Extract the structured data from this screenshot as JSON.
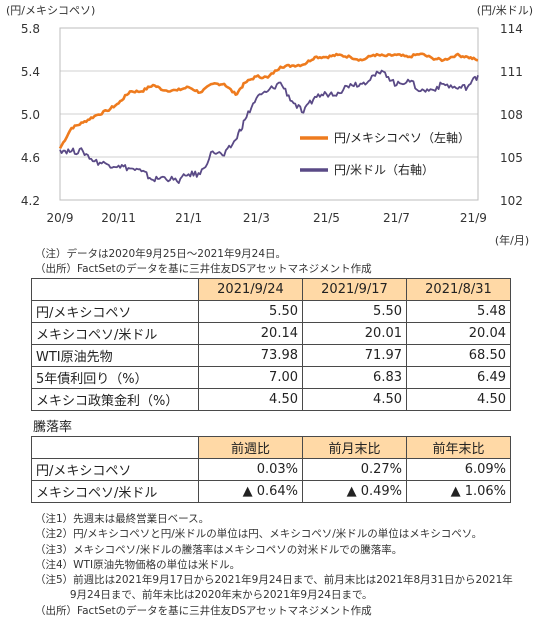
{
  "chart_data": {
    "type": "line",
    "left_axis_unit": "(円/メキシコペソ)",
    "right_axis_unit": "(円/米ドル)",
    "x_axis_unit": "(年/月)",
    "x_ticks": [
      "20/9",
      "20/11",
      "21/1",
      "21/3",
      "21/5",
      "21/7",
      "21/9"
    ],
    "left_ylim": [
      4.2,
      5.8
    ],
    "left_ticks": [
      "4.2",
      "4.6",
      "5.0",
      "5.4",
      "5.8"
    ],
    "right_ylim": [
      102,
      114
    ],
    "right_ticks": [
      "102",
      "105",
      "108",
      "111",
      "114"
    ],
    "series": [
      {
        "name": "円/メキシコペソ（左軸）",
        "axis": "left",
        "color": "#ee7b1e",
        "x": [
          "2020-09-25",
          "2020-10-05",
          "2020-10-15",
          "2020-10-25",
          "2020-11-05",
          "2020-11-15",
          "2020-11-25",
          "2020-12-05",
          "2020-12-15",
          "2020-12-25",
          "2021-01-05",
          "2021-01-15",
          "2021-01-25",
          "2021-02-05",
          "2021-02-15",
          "2021-02-25",
          "2021-03-05",
          "2021-03-15",
          "2021-03-25",
          "2021-04-05",
          "2021-04-15",
          "2021-04-25",
          "2021-05-05",
          "2021-05-15",
          "2021-05-25",
          "2021-06-05",
          "2021-06-15",
          "2021-06-25",
          "2021-07-05",
          "2021-07-15",
          "2021-07-25",
          "2021-08-05",
          "2021-08-15",
          "2021-08-25",
          "2021-09-05",
          "2021-09-15",
          "2021-09-24"
        ],
        "y": [
          4.68,
          4.87,
          4.92,
          4.98,
          5.03,
          5.1,
          5.21,
          5.21,
          5.27,
          5.22,
          5.22,
          5.25,
          5.2,
          5.28,
          5.28,
          5.18,
          5.29,
          5.35,
          5.34,
          5.44,
          5.45,
          5.46,
          5.53,
          5.53,
          5.55,
          5.53,
          5.5,
          5.55,
          5.54,
          5.55,
          5.53,
          5.56,
          5.52,
          5.5,
          5.55,
          5.53,
          5.5
        ]
      },
      {
        "name": "円/米ドル（右軸）",
        "axis": "right",
        "color": "#5a4a86",
        "x": [
          "2020-09-25",
          "2020-10-05",
          "2020-10-15",
          "2020-10-25",
          "2020-11-05",
          "2020-11-15",
          "2020-11-25",
          "2020-12-05",
          "2020-12-15",
          "2020-12-25",
          "2021-01-05",
          "2021-01-15",
          "2021-01-25",
          "2021-02-05",
          "2021-02-15",
          "2021-02-25",
          "2021-03-05",
          "2021-03-15",
          "2021-03-25",
          "2021-04-05",
          "2021-04-15",
          "2021-04-25",
          "2021-05-05",
          "2021-05-15",
          "2021-05-25",
          "2021-06-05",
          "2021-06-15",
          "2021-06-25",
          "2021-07-05",
          "2021-07-15",
          "2021-07-25",
          "2021-08-05",
          "2021-08-15",
          "2021-08-25",
          "2021-09-05",
          "2021-09-15",
          "2021-09-24"
        ],
        "y": [
          105.5,
          105.4,
          105.4,
          104.7,
          104.5,
          104.4,
          104.2,
          104.0,
          103.4,
          103.6,
          103.3,
          103.8,
          103.8,
          105.4,
          105.1,
          106.2,
          107.6,
          109.1,
          109.6,
          110.2,
          108.9,
          108.1,
          109.2,
          109.4,
          109.5,
          110.1,
          110.1,
          110.7,
          110.9,
          110.0,
          110.4,
          109.6,
          109.7,
          110.1,
          109.8,
          109.9,
          110.7
        ]
      }
    ]
  },
  "notes_top": [
    "（注）データは2020年9月25日～2021年9月24日。",
    "（出所）FactSetのデータを基に三井住友DSアセットマネジメント作成"
  ],
  "table1": {
    "headers": [
      "2021/9/24",
      "2021/9/17",
      "2021/8/31"
    ],
    "rows": [
      {
        "label": "円/メキシコペソ",
        "values": [
          "5.50",
          "5.50",
          "5.48"
        ]
      },
      {
        "label": "メキシコペソ/米ドル",
        "values": [
          "20.14",
          "20.01",
          "20.04"
        ]
      },
      {
        "label": "WTI原油先物",
        "values": [
          "73.98",
          "71.97",
          "68.50"
        ]
      },
      {
        "label": "5年債利回り（%）",
        "values": [
          "7.00",
          "6.83",
          "6.49"
        ]
      },
      {
        "label": "メキシコ政策金利（%）",
        "values": [
          "4.50",
          "4.50",
          "4.50"
        ]
      }
    ]
  },
  "table2_title": "騰落率",
  "table2": {
    "headers": [
      "前週比",
      "前月末比",
      "前年末比"
    ],
    "rows": [
      {
        "label": "円/メキシコペソ",
        "values": [
          "0.03%",
          "0.27%",
          "6.09%"
        ]
      },
      {
        "label": "メキシコペソ/米ドル",
        "values": [
          "▲ 0.64%",
          "▲ 0.49%",
          "▲ 1.06%"
        ]
      }
    ]
  },
  "notes_bottom": [
    "（注1）先週末は最終営業日ベース。",
    "（注2）円/メキシコペソと円/米ドルの単位は円、メキシコペソ/米ドルの単位はメキシコペソ。",
    "（注3）メキシコペソ/米ドルの騰落率はメキシコペソの対米ドルでの騰落率。",
    "（注4）WTI原油先物価格の単位は米ドル。",
    "（注5）前週比は2021年9月17日から2021年9月24日まで、前月末比は2021年8月31日から2021年",
    "　　　 9月24日まで、前年末比は2020年末から2021年9月24日まで。",
    "（出所）FactSetのデータを基に三井住友DSアセットマネジメント作成"
  ]
}
